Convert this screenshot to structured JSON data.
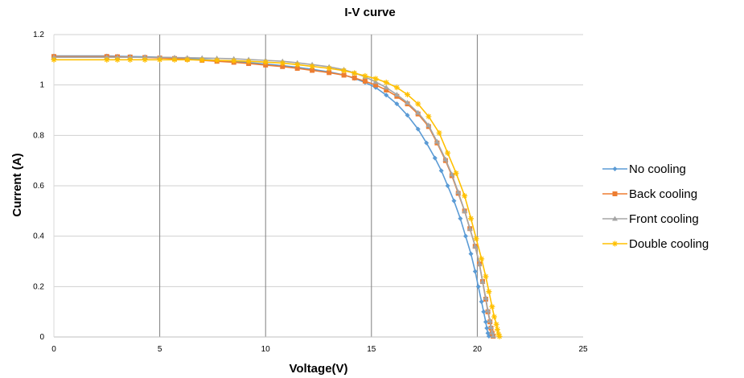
{
  "chart_data": {
    "type": "line",
    "title": "I-V curve",
    "xlabel": "Voltage(V)",
    "ylabel": "Current (A)",
    "xlim": [
      0,
      25
    ],
    "ylim": [
      0,
      1.2
    ],
    "xticks": [
      "0",
      "5",
      "10",
      "15",
      "20",
      "25"
    ],
    "yticks": [
      "0",
      "0.2",
      "0.4",
      "0.6",
      "0.8",
      "1",
      "1.2"
    ],
    "grid": true,
    "legend_position": "right",
    "series": [
      {
        "name": "No cooling",
        "color": "#5b9bd5",
        "marker": "diamond",
        "x": [
          0,
          2.5,
          3,
          3.6,
          4.3,
          5,
          5.7,
          6.3,
          7,
          7.7,
          8.5,
          9.2,
          10,
          10.8,
          11.5,
          12.2,
          13,
          13.7,
          14.2,
          14.7,
          15.2,
          15.7,
          16.2,
          16.7,
          17.2,
          17.6,
          18,
          18.3,
          18.6,
          18.9,
          19.2,
          19.45,
          19.7,
          19.9,
          20.05,
          20.2,
          20.3,
          20.4,
          20.45,
          20.5,
          20.55
        ],
        "y": [
          1.115,
          1.115,
          1.114,
          1.113,
          1.112,
          1.11,
          1.108,
          1.105,
          1.102,
          1.098,
          1.094,
          1.089,
          1.083,
          1.077,
          1.07,
          1.062,
          1.052,
          1.04,
          1.026,
          1.01,
          0.99,
          0.96,
          0.925,
          0.88,
          0.825,
          0.77,
          0.71,
          0.66,
          0.6,
          0.54,
          0.47,
          0.4,
          0.33,
          0.26,
          0.2,
          0.14,
          0.1,
          0.06,
          0.035,
          0.015,
          0.003
        ]
      },
      {
        "name": "Back cooling",
        "color": "#ed7d31",
        "marker": "square",
        "x": [
          0,
          2.5,
          3,
          3.6,
          4.3,
          5,
          5.7,
          6.3,
          7,
          7.7,
          8.5,
          9.2,
          10,
          10.8,
          11.5,
          12.2,
          13,
          13.7,
          14.2,
          14.7,
          15.2,
          15.7,
          16.2,
          16.7,
          17.2,
          17.7,
          18.1,
          18.5,
          18.8,
          19.1,
          19.4,
          19.65,
          19.9,
          20.1,
          20.25,
          20.4,
          20.5,
          20.6,
          20.65,
          20.7,
          20.75
        ],
        "y": [
          1.113,
          1.113,
          1.112,
          1.111,
          1.109,
          1.107,
          1.105,
          1.102,
          1.098,
          1.094,
          1.09,
          1.085,
          1.079,
          1.073,
          1.066,
          1.058,
          1.049,
          1.039,
          1.028,
          1.015,
          1.0,
          0.98,
          0.955,
          0.925,
          0.885,
          0.835,
          0.77,
          0.7,
          0.64,
          0.57,
          0.5,
          0.43,
          0.36,
          0.29,
          0.22,
          0.15,
          0.1,
          0.06,
          0.035,
          0.015,
          0.003
        ]
      },
      {
        "name": "Front cooling",
        "color": "#a5a5a5",
        "marker": "triangle",
        "x": [
          0,
          2.5,
          3,
          3.6,
          4.3,
          5,
          5.7,
          6.3,
          7,
          7.7,
          8.5,
          9.2,
          10,
          10.8,
          11.5,
          12.2,
          13,
          13.7,
          14.2,
          14.7,
          15.2,
          15.7,
          16.2,
          16.7,
          17.2,
          17.7,
          18.1,
          18.5,
          18.8,
          19.1,
          19.4,
          19.65,
          19.9,
          20.1,
          20.25,
          20.4,
          20.5,
          20.6,
          20.65,
          20.7,
          20.75
        ],
        "y": [
          1.11,
          1.11,
          1.11,
          1.11,
          1.11,
          1.11,
          1.109,
          1.108,
          1.107,
          1.106,
          1.104,
          1.101,
          1.098,
          1.094,
          1.088,
          1.081,
          1.072,
          1.061,
          1.048,
          1.032,
          1.012,
          0.99,
          0.962,
          0.93,
          0.89,
          0.84,
          0.775,
          0.705,
          0.645,
          0.575,
          0.5,
          0.43,
          0.36,
          0.29,
          0.22,
          0.155,
          0.105,
          0.065,
          0.04,
          0.018,
          0.004
        ]
      },
      {
        "name": "Double cooling",
        "color": "#ffc000",
        "marker": "star",
        "x": [
          0,
          2.5,
          3,
          3.6,
          4.3,
          5,
          5.7,
          6.3,
          7,
          7.7,
          8.5,
          9.2,
          10,
          10.8,
          11.5,
          12.2,
          13,
          13.7,
          14.2,
          14.7,
          15.2,
          15.7,
          16.2,
          16.7,
          17.2,
          17.7,
          18.2,
          18.6,
          19.0,
          19.4,
          19.7,
          19.95,
          20.2,
          20.4,
          20.55,
          20.7,
          20.8,
          20.9,
          20.95,
          21.0,
          21.05
        ],
        "y": [
          1.1,
          1.1,
          1.1,
          1.1,
          1.1,
          1.1,
          1.1,
          1.1,
          1.099,
          1.098,
          1.096,
          1.094,
          1.091,
          1.087,
          1.081,
          1.074,
          1.066,
          1.057,
          1.047,
          1.036,
          1.025,
          1.01,
          0.99,
          0.962,
          0.925,
          0.875,
          0.81,
          0.73,
          0.65,
          0.56,
          0.47,
          0.39,
          0.31,
          0.24,
          0.18,
          0.12,
          0.08,
          0.05,
          0.03,
          0.012,
          0.002
        ]
      }
    ]
  }
}
